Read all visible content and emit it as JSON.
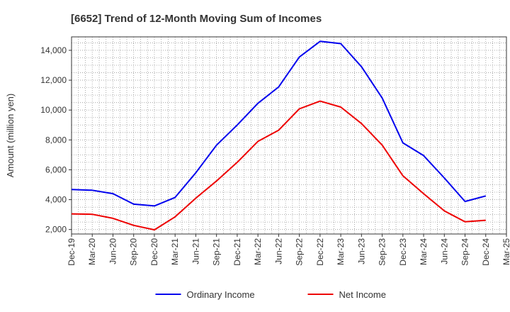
{
  "chart_data": {
    "type": "line",
    "title": "[6652]  Trend of 12-Month Moving Sum of Incomes",
    "ylabel": "Amount (million yen)",
    "xlabel": "",
    "categories": [
      "Dec-19",
      "Mar-20",
      "Jun-20",
      "Sep-20",
      "Dec-20",
      "Mar-21",
      "Jun-21",
      "Sep-21",
      "Dec-21",
      "Mar-22",
      "Jun-22",
      "Sep-22",
      "Dec-22",
      "Mar-23",
      "Jun-23",
      "Sep-23",
      "Dec-23",
      "Mar-24",
      "Jun-24",
      "Sep-24",
      "Dec-24",
      "Mar-25"
    ],
    "ylim": [
      1700,
      14900
    ],
    "yticks": [
      2000,
      4000,
      6000,
      8000,
      10000,
      12000,
      14000
    ],
    "ytick_labels": [
      "2,000",
      "4,000",
      "6,000",
      "8,000",
      "10,000",
      "12,000",
      "14,000"
    ],
    "grid": true,
    "legend_position": "bottom",
    "series": [
      {
        "name": "Ordinary Income",
        "color": "#0000ee",
        "values": [
          4680,
          4630,
          4400,
          3700,
          3580,
          4150,
          5800,
          7650,
          9000,
          10450,
          11550,
          13550,
          14600,
          14450,
          12900,
          10800,
          7800,
          6950,
          5450,
          3880,
          4250,
          null
        ]
      },
      {
        "name": "Net Income",
        "color": "#ee0000",
        "values": [
          3050,
          3020,
          2750,
          2280,
          1980,
          2850,
          4100,
          5250,
          6500,
          7900,
          8650,
          10080,
          10600,
          10200,
          9100,
          7650,
          5600,
          4400,
          3250,
          2520,
          2620,
          null
        ]
      }
    ]
  }
}
